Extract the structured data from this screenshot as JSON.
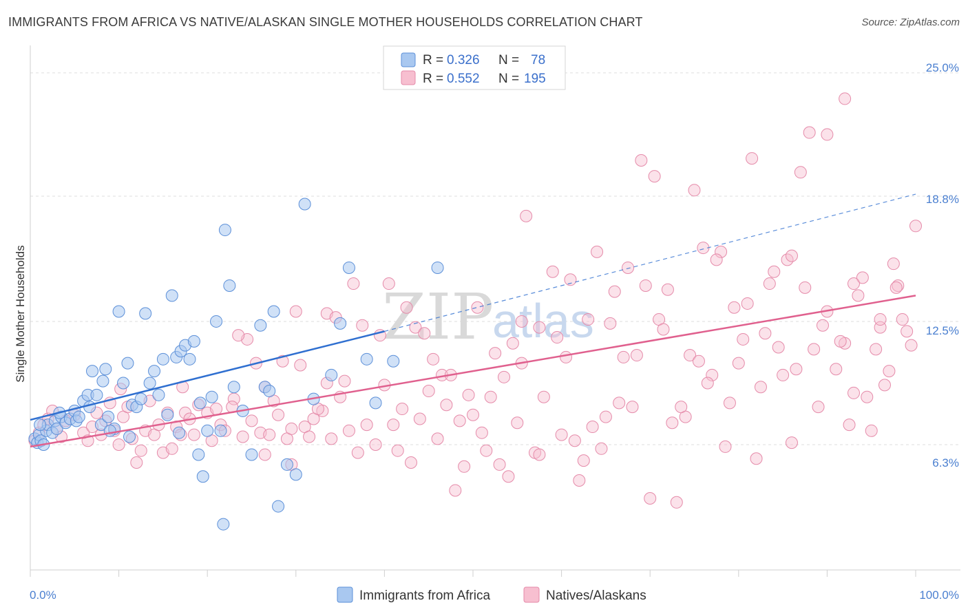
{
  "header": {
    "title": "IMMIGRANTS FROM AFRICA VS NATIVE/ALASKAN SINGLE MOTHER HOUSEHOLDS CORRELATION CHART",
    "source": "Source: ZipAtlas.com"
  },
  "watermark": {
    "zip": "ZIP",
    "atlas": "atlas"
  },
  "legend": {
    "r_label": "R =",
    "n_label": "N =",
    "blue_r": "0.326",
    "blue_n": "78",
    "pink_r": "0.552",
    "pink_n": "195"
  },
  "colors": {
    "blue_fill": "#a9c8f0",
    "blue_stroke": "#5b8fd8",
    "blue_line": "#2f6fd0",
    "pink_fill": "#f7bfd0",
    "pink_stroke": "#e58aa9",
    "pink_line": "#e0608e",
    "grid": "#dddddd",
    "axis_text": "#4a7fd0"
  },
  "chart_data": {
    "type": "scatter",
    "title": "IMMIGRANTS FROM AFRICA VS NATIVE/ALASKAN SINGLE MOTHER HOUSEHOLDS CORRELATION CHART",
    "xlabel": "",
    "ylabel": "Single Mother Households",
    "x_tick_labels": [
      "0.0%",
      "100.0%"
    ],
    "y_tick_labels": [
      "6.3%",
      "12.5%",
      "18.8%",
      "25.0%"
    ],
    "y_ticks": [
      6.3,
      12.5,
      18.8,
      25.0
    ],
    "xlim": [
      0,
      100
    ],
    "ylim": [
      0,
      26
    ],
    "grid": true,
    "legend_position": "top-center",
    "series": [
      {
        "name": "Immigrants from Africa",
        "stats": {
          "R": 0.326,
          "N": 78
        },
        "trend": {
          "x0": 0,
          "y0": 7.55,
          "x_solid_end": 40,
          "y_solid_end": 12.0,
          "x_dash_end": 100,
          "y_dash_end": 18.9
        },
        "points": [
          [
            0.5,
            6.6
          ],
          [
            0.8,
            6.4
          ],
          [
            1,
            6.8
          ],
          [
            1.2,
            6.5
          ],
          [
            1.5,
            6.3
          ],
          [
            1.8,
            7.0
          ],
          [
            2,
            7.3
          ],
          [
            2.5,
            6.9
          ],
          [
            2.8,
            7.5
          ],
          [
            3,
            7.1
          ],
          [
            3.5,
            7.7
          ],
          [
            4,
            7.4
          ],
          [
            4.5,
            7.6
          ],
          [
            5,
            8.0
          ],
          [
            5.2,
            7.5
          ],
          [
            5.5,
            7.7
          ],
          [
            6,
            8.5
          ],
          [
            6.5,
            8.8
          ],
          [
            7,
            10.0
          ],
          [
            7.5,
            8.8
          ],
          [
            8,
            7.3
          ],
          [
            8.5,
            10.1
          ],
          [
            8.8,
            7.7
          ],
          [
            9.5,
            7.1
          ],
          [
            10,
            13.0
          ],
          [
            10.5,
            9.4
          ],
          [
            11,
            10.4
          ],
          [
            11.5,
            8.3
          ],
          [
            12,
            8.2
          ],
          [
            12.5,
            8.6
          ],
          [
            13,
            12.9
          ],
          [
            13.5,
            9.4
          ],
          [
            14,
            10.0
          ],
          [
            14.5,
            8.8
          ],
          [
            15,
            10.6
          ],
          [
            15.5,
            7.8
          ],
          [
            16,
            13.8
          ],
          [
            16.5,
            10.7
          ],
          [
            17,
            11.0
          ],
          [
            17.5,
            11.3
          ],
          [
            18,
            10.6
          ],
          [
            18.5,
            11.5
          ],
          [
            19,
            5.8
          ],
          [
            19.5,
            4.7
          ],
          [
            20,
            7.0
          ],
          [
            20.5,
            8.7
          ],
          [
            21,
            12.5
          ],
          [
            21.5,
            7.0
          ],
          [
            22,
            17.1
          ],
          [
            22.5,
            14.3
          ],
          [
            23,
            9.2
          ],
          [
            24,
            8.0
          ],
          [
            25,
            5.8
          ],
          [
            26,
            12.3
          ],
          [
            26.5,
            9.2
          ],
          [
            27,
            9.0
          ],
          [
            28,
            3.2
          ],
          [
            29,
            5.3
          ],
          [
            30,
            4.8
          ],
          [
            31,
            18.4
          ],
          [
            32,
            8.6
          ],
          [
            34,
            9.8
          ],
          [
            36,
            15.2
          ],
          [
            38,
            10.6
          ],
          [
            39,
            8.4
          ],
          [
            41,
            10.5
          ],
          [
            46,
            15.2
          ],
          [
            6.7,
            8.2
          ],
          [
            3.3,
            7.9
          ],
          [
            9,
            7.0
          ],
          [
            16.8,
            6.9
          ],
          [
            11.2,
            6.7
          ],
          [
            21.8,
            2.3
          ],
          [
            1.1,
            7.3
          ],
          [
            27.5,
            13.0
          ],
          [
            8.2,
            9.5
          ],
          [
            19.2,
            8.4
          ],
          [
            35,
            12.4
          ]
        ]
      },
      {
        "name": "Natives/Alaskans",
        "stats": {
          "R": 0.552,
          "N": 195
        },
        "trend": {
          "x0": 0,
          "y0": 6.2,
          "x1": 100,
          "y1": 13.8
        },
        "points": [
          [
            0.5,
            6.5
          ],
          [
            1,
            6.9
          ],
          [
            1.5,
            7.3
          ],
          [
            2,
            7.6
          ],
          [
            2.5,
            8.0
          ],
          [
            3,
            7.1
          ],
          [
            3.5,
            6.7
          ],
          [
            4,
            7.5
          ],
          [
            5,
            7.8
          ],
          [
            6,
            6.9
          ],
          [
            6.5,
            6.5
          ],
          [
            7,
            7.2
          ],
          [
            7.5,
            7.9
          ],
          [
            8,
            6.8
          ],
          [
            8.5,
            7.5
          ],
          [
            9,
            8.4
          ],
          [
            9.5,
            7.0
          ],
          [
            10,
            6.3
          ],
          [
            10.5,
            7.7
          ],
          [
            11,
            8.2
          ],
          [
            11.5,
            6.6
          ],
          [
            12,
            5.4
          ],
          [
            12.5,
            6.0
          ],
          [
            13,
            7.0
          ],
          [
            13.5,
            8.5
          ],
          [
            14,
            6.8
          ],
          [
            14.5,
            7.3
          ],
          [
            15,
            5.9
          ],
          [
            15.5,
            7.9
          ],
          [
            16,
            6.1
          ],
          [
            16.5,
            7.2
          ],
          [
            17,
            6.8
          ],
          [
            17.5,
            7.9
          ],
          [
            18,
            7.6
          ],
          [
            18.5,
            6.8
          ],
          [
            19,
            8.3
          ],
          [
            20,
            7.9
          ],
          [
            20.5,
            6.5
          ],
          [
            21,
            8.1
          ],
          [
            21.5,
            7.3
          ],
          [
            22,
            7.0
          ],
          [
            23,
            8.6
          ],
          [
            24,
            6.7
          ],
          [
            25,
            7.5
          ],
          [
            26,
            6.9
          ],
          [
            26.5,
            5.8
          ],
          [
            27,
            6.8
          ],
          [
            28,
            7.8
          ],
          [
            29,
            6.6
          ],
          [
            30,
            13.0
          ],
          [
            31,
            7.2
          ],
          [
            32,
            7.6
          ],
          [
            33,
            8.0
          ],
          [
            34,
            6.6
          ],
          [
            35,
            8.7
          ],
          [
            36,
            7.0
          ],
          [
            37,
            5.9
          ],
          [
            38,
            7.3
          ],
          [
            39,
            6.3
          ],
          [
            40,
            9.3
          ],
          [
            41,
            7.3
          ],
          [
            42,
            8.1
          ],
          [
            43,
            5.4
          ],
          [
            44,
            7.6
          ],
          [
            45,
            9.0
          ],
          [
            46,
            6.6
          ],
          [
            47,
            8.3
          ],
          [
            48,
            4.0
          ],
          [
            49,
            5.2
          ],
          [
            50,
            7.8
          ],
          [
            51,
            6.9
          ],
          [
            52,
            8.7
          ],
          [
            53,
            5.3
          ],
          [
            54,
            4.7
          ],
          [
            55,
            7.4
          ],
          [
            56,
            17.8
          ],
          [
            57,
            5.9
          ],
          [
            58,
            8.7
          ],
          [
            59,
            15.0
          ],
          [
            60,
            6.8
          ],
          [
            61,
            14.6
          ],
          [
            62,
            4.5
          ],
          [
            63,
            12.6
          ],
          [
            64,
            16.0
          ],
          [
            65,
            7.7
          ],
          [
            66,
            14.0
          ],
          [
            67,
            10.7
          ],
          [
            68,
            8.2
          ],
          [
            69,
            20.6
          ],
          [
            70,
            3.6
          ],
          [
            71,
            12.6
          ],
          [
            72,
            14.1
          ],
          [
            73,
            3.4
          ],
          [
            74,
            7.7
          ],
          [
            75,
            19.1
          ],
          [
            76,
            16.2
          ],
          [
            77,
            9.8
          ],
          [
            78,
            16.0
          ],
          [
            79,
            8.4
          ],
          [
            80,
            10.4
          ],
          [
            81,
            13.4
          ],
          [
            82,
            5.6
          ],
          [
            83,
            11.9
          ],
          [
            84,
            15.0
          ],
          [
            85,
            9.8
          ],
          [
            86,
            6.4
          ],
          [
            87,
            20.0
          ],
          [
            88,
            22.0
          ],
          [
            89,
            8.2
          ],
          [
            90,
            21.9
          ],
          [
            91,
            10.1
          ],
          [
            92,
            11.4
          ],
          [
            93,
            8.9
          ],
          [
            94,
            14.7
          ],
          [
            95,
            7.0
          ],
          [
            96,
            12.2
          ],
          [
            97,
            10.0
          ],
          [
            98,
            14.3
          ],
          [
            99,
            12.0
          ],
          [
            100,
            17.3
          ],
          [
            10.2,
            9.1
          ],
          [
            17.2,
            9.2
          ],
          [
            22.8,
            8.2
          ],
          [
            29.5,
            7.1
          ],
          [
            33.5,
            12.9
          ],
          [
            41.5,
            6.0
          ],
          [
            43.5,
            12.2
          ],
          [
            46.5,
            9.8
          ],
          [
            48.5,
            7.5
          ],
          [
            51.5,
            6.0
          ],
          [
            53.5,
            9.7
          ],
          [
            55.5,
            12.5
          ],
          [
            57.5,
            5.8
          ],
          [
            60.5,
            10.7
          ],
          [
            62.5,
            5.5
          ],
          [
            64.5,
            6.1
          ],
          [
            66.5,
            8.4
          ],
          [
            68.5,
            10.8
          ],
          [
            70.5,
            19.8
          ],
          [
            72.5,
            7.4
          ],
          [
            74.5,
            10.8
          ],
          [
            76.5,
            9.4
          ],
          [
            78.5,
            6.2
          ],
          [
            80.5,
            11.6
          ],
          [
            82.5,
            9.2
          ],
          [
            84.5,
            11.2
          ],
          [
            86.5,
            10.1
          ],
          [
            88.5,
            11.1
          ],
          [
            89.5,
            12.3
          ],
          [
            91.5,
            11.5
          ],
          [
            92.5,
            7.3
          ],
          [
            93.5,
            13.8
          ],
          [
            94.5,
            8.7
          ],
          [
            95.5,
            11.1
          ],
          [
            96.5,
            9.3
          ],
          [
            97.5,
            15.4
          ],
          [
            98.5,
            12.6
          ],
          [
            99.5,
            11.3
          ],
          [
            87.5,
            14.2
          ],
          [
            85.5,
            15.6
          ],
          [
            83.5,
            14.4
          ],
          [
            81.5,
            20.7
          ],
          [
            79.5,
            13.2
          ],
          [
            77.5,
            15.6
          ],
          [
            75.5,
            10.5
          ],
          [
            73.5,
            8.2
          ],
          [
            71.5,
            12.1
          ],
          [
            69.5,
            14.3
          ],
          [
            67.5,
            15.2
          ],
          [
            65.5,
            12.4
          ],
          [
            63.5,
            7.2
          ],
          [
            61.5,
            6.5
          ],
          [
            59.5,
            11.7
          ],
          [
            57.5,
            12.2
          ],
          [
            55.5,
            10.4
          ],
          [
            54.5,
            11.4
          ],
          [
            52.5,
            10.9
          ],
          [
            50.5,
            13.2
          ],
          [
            49.5,
            8.8
          ],
          [
            47.5,
            9.8
          ],
          [
            45.5,
            10.6
          ],
          [
            44.5,
            11.9
          ],
          [
            42.5,
            13.2
          ],
          [
            40.5,
            14.4
          ],
          [
            39.5,
            11.8
          ],
          [
            37.5,
            12.3
          ],
          [
            36.5,
            14.4
          ],
          [
            35.5,
            9.5
          ],
          [
            34.5,
            12.7
          ],
          [
            33.5,
            9.4
          ],
          [
            32.5,
            8.1
          ],
          [
            31.5,
            6.7
          ],
          [
            30.5,
            10.3
          ],
          [
            29.5,
            5.3
          ],
          [
            28.5,
            10.5
          ],
          [
            27.5,
            8.5
          ],
          [
            26.5,
            9.2
          ],
          [
            25.5,
            10.4
          ],
          [
            24.5,
            11.6
          ],
          [
            23.5,
            11.8
          ],
          [
            92,
            23.7
          ],
          [
            86,
            15.8
          ],
          [
            90,
            13.0
          ],
          [
            96,
            12.6
          ],
          [
            93,
            14.4
          ],
          [
            97.8,
            14.2
          ]
        ]
      }
    ]
  },
  "bottom_legend": {
    "blue_label": "Immigrants from Africa",
    "pink_label": "Natives/Alaskans"
  }
}
